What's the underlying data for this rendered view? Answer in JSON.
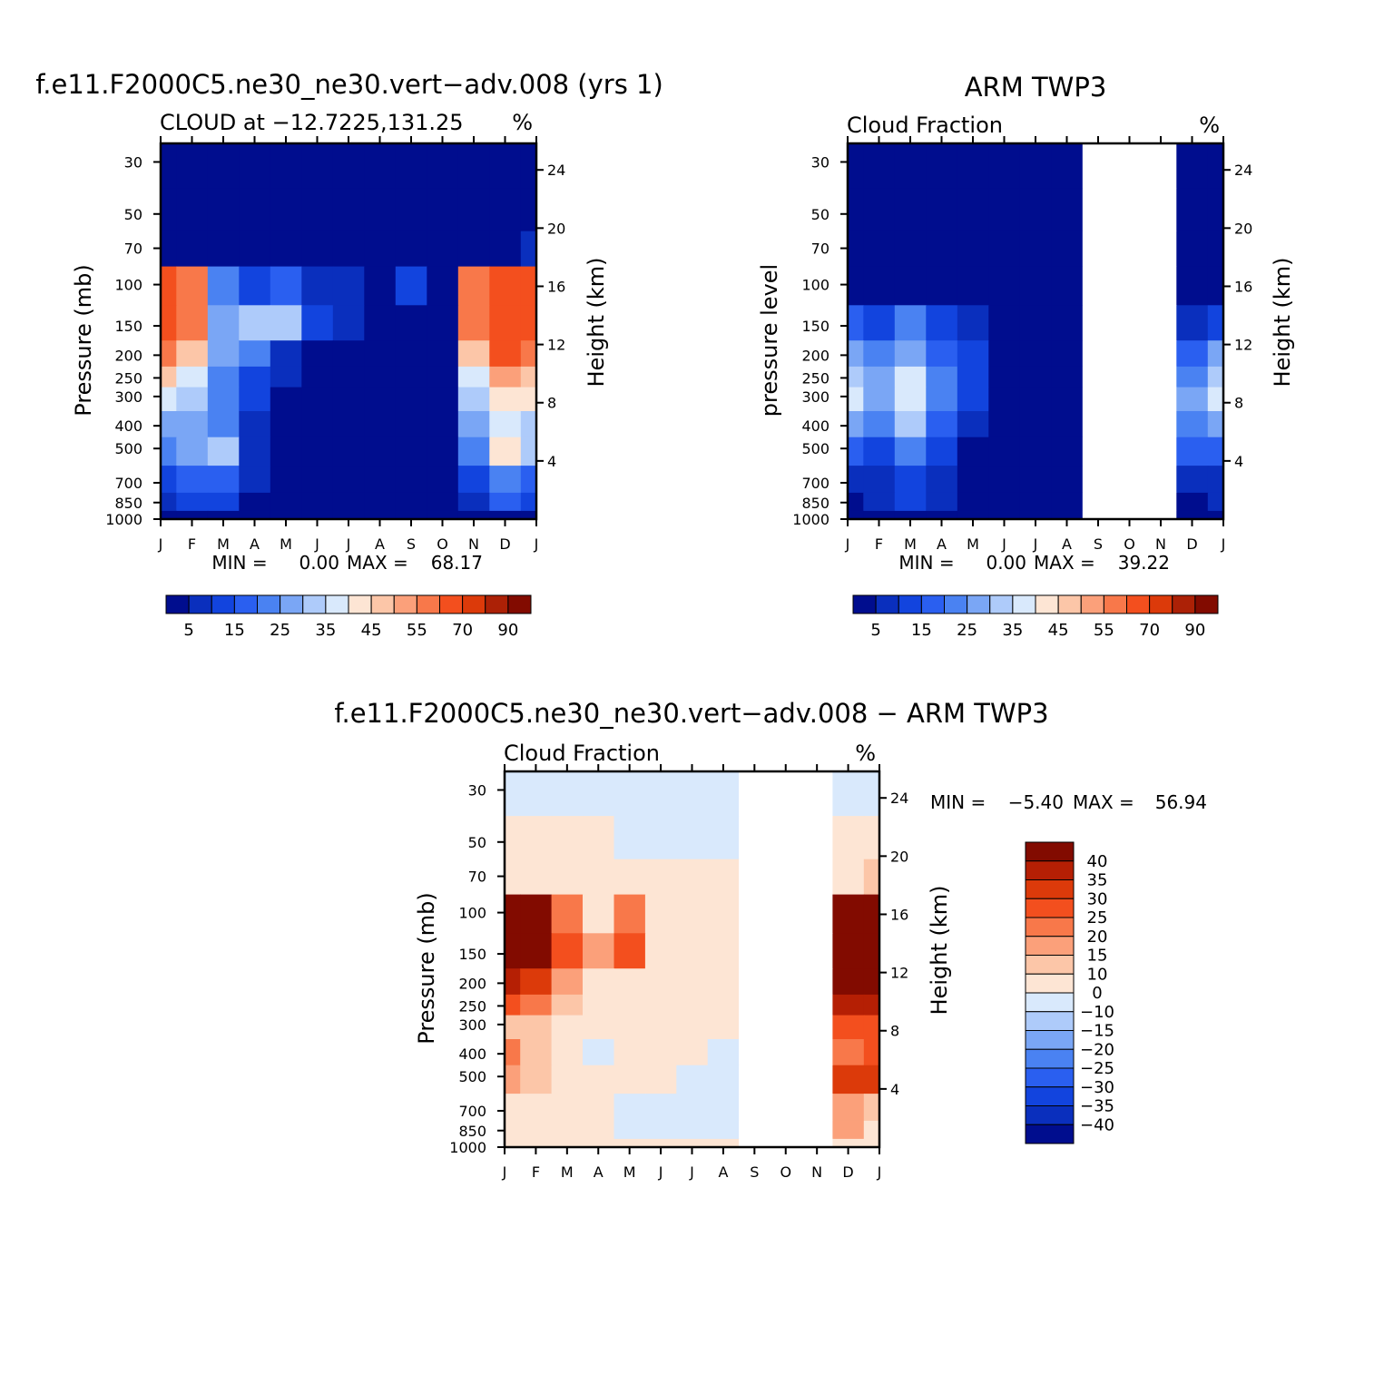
{
  "chart_data": [
    {
      "type": "heatmap",
      "title": "f.e11.F2000C5.ne30_ne30.vert−adv.008 (yrs 1)",
      "subtitle": "CLOUD at −12.7225,131.25",
      "units": "%",
      "xlabel": "",
      "ylabel": "Pressure (mb)",
      "ylabel_right": "Height (km)",
      "x_ticks": [
        "J",
        "F",
        "M",
        "A",
        "M",
        "J",
        "J",
        "A",
        "S",
        "O",
        "N",
        "D",
        "J"
      ],
      "y_ticks": [
        30,
        50,
        70,
        100,
        150,
        200,
        250,
        300,
        400,
        500,
        700,
        850,
        1000
      ],
      "y_scale": "log",
      "y_right_ticks": [
        24,
        20,
        16,
        12,
        8,
        4
      ],
      "min_text": "MIN =",
      "min_value": "0.00",
      "max_text": "MAX =",
      "max_value": "68.17",
      "missing_months": [],
      "colorbar": {
        "orientation": "horizontal",
        "labels": [
          "5",
          "15",
          "25",
          "35",
          "45",
          "55",
          "70",
          "90"
        ],
        "colors": [
          "#000d8e",
          "#0a2fbd",
          "#1244de",
          "#2a5ff0",
          "#4a82f2",
          "#7aa6f5",
          "#aecbfa",
          "#d9e9fc",
          "#fde5d4",
          "#fcc6a8",
          "#fba07a",
          "#f8784a",
          "#f34f1e",
          "#dc3a0a",
          "#ac2106",
          "#820b00"
        ]
      },
      "grid": [
        [
          0,
          0,
          0,
          0,
          0,
          0,
          0,
          0,
          0,
          0,
          0,
          0,
          0
        ],
        [
          0,
          0,
          0,
          0,
          0,
          0,
          0,
          0,
          0,
          0,
          0,
          0,
          0
        ],
        [
          4,
          3,
          1,
          0,
          0,
          0,
          0,
          0,
          0,
          0,
          2,
          4,
          5
        ],
        [
          62,
          55,
          20,
          10,
          18,
          8,
          5,
          4,
          12,
          4,
          55,
          66,
          63
        ],
        [
          66,
          58,
          25,
          30,
          30,
          12,
          6,
          4,
          3,
          3,
          58,
          68,
          64
        ],
        [
          55,
          48,
          25,
          20,
          8,
          4,
          4,
          2,
          2,
          2,
          48,
          60,
          58
        ],
        [
          45,
          38,
          22,
          14,
          6,
          2,
          2,
          2,
          2,
          2,
          38,
          50,
          48
        ],
        [
          35,
          30,
          20,
          10,
          3,
          2,
          2,
          2,
          2,
          2,
          30,
          40,
          40
        ],
        [
          25,
          25,
          22,
          8,
          2,
          2,
          2,
          2,
          2,
          2,
          25,
          35,
          33
        ],
        [
          20,
          28,
          30,
          6,
          2,
          2,
          2,
          2,
          2,
          2,
          20,
          40,
          30
        ],
        [
          12,
          16,
          18,
          5,
          2,
          2,
          2,
          2,
          4,
          2,
          12,
          20,
          16
        ],
        [
          8,
          14,
          12,
          4,
          3,
          2,
          2,
          2,
          2,
          2,
          8,
          18,
          10
        ],
        [
          2,
          2,
          2,
          2,
          2,
          2,
          2,
          2,
          2,
          2,
          2,
          2,
          2
        ]
      ]
    },
    {
      "type": "heatmap",
      "title": "ARM TWP3",
      "subtitle": "Cloud Fraction",
      "units": "%",
      "xlabel": "",
      "ylabel": "pressure level",
      "ylabel_right": "Height (km)",
      "x_ticks": [
        "J",
        "F",
        "M",
        "A",
        "M",
        "J",
        "J",
        "A",
        "S",
        "O",
        "N",
        "D",
        "J"
      ],
      "y_ticks": [
        30,
        50,
        70,
        100,
        150,
        200,
        250,
        300,
        400,
        500,
        700,
        850,
        1000
      ],
      "y_scale": "log",
      "y_right_ticks": [
        24,
        20,
        16,
        12,
        8,
        4
      ],
      "min_text": "MIN =",
      "min_value": "0.00",
      "max_text": "MAX =",
      "max_value": "39.22",
      "missing_months": [
        "S",
        "O",
        "N"
      ],
      "colorbar": {
        "orientation": "horizontal",
        "labels": [
          "5",
          "15",
          "25",
          "35",
          "45",
          "55",
          "70",
          "90"
        ],
        "colors": [
          "#000d8e",
          "#0a2fbd",
          "#1244de",
          "#2a5ff0",
          "#4a82f2",
          "#7aa6f5",
          "#aecbfa",
          "#d9e9fc",
          "#fde5d4",
          "#fcc6a8",
          "#fba07a",
          "#f8784a",
          "#f34f1e",
          "#dc3a0a",
          "#ac2106",
          "#820b00"
        ]
      },
      "grid": [
        [
          0,
          0,
          0,
          0,
          0,
          0,
          0,
          0,
          null,
          null,
          null,
          0,
          0
        ],
        [
          0,
          0,
          0,
          0,
          0,
          0,
          0,
          0,
          null,
          null,
          null,
          0,
          0
        ],
        [
          0,
          0,
          0,
          0,
          0,
          0,
          0,
          0,
          null,
          null,
          null,
          0,
          0
        ],
        [
          3,
          4,
          2,
          1,
          0,
          0,
          0,
          0,
          null,
          null,
          null,
          0,
          1
        ],
        [
          15,
          12,
          20,
          14,
          8,
          0,
          0,
          0,
          null,
          null,
          null,
          6,
          10
        ],
        [
          25,
          20,
          28,
          18,
          10,
          2,
          0,
          0,
          null,
          null,
          null,
          16,
          25
        ],
        [
          32,
          25,
          35,
          22,
          10,
          2,
          0,
          0,
          null,
          null,
          null,
          24,
          33
        ],
        [
          35,
          28,
          38,
          22,
          10,
          2,
          0,
          0,
          null,
          null,
          null,
          26,
          36
        ],
        [
          25,
          22,
          32,
          18,
          6,
          2,
          0,
          0,
          null,
          null,
          null,
          20,
          26
        ],
        [
          16,
          14,
          24,
          13,
          4,
          1,
          0,
          0,
          null,
          null,
          null,
          15,
          18
        ],
        [
          6,
          8,
          12,
          8,
          3,
          2,
          1,
          0,
          null,
          null,
          null,
          5,
          8
        ],
        [
          4,
          8,
          10,
          6,
          2,
          2,
          1,
          0,
          null,
          null,
          null,
          3,
          5
        ],
        [
          3,
          4,
          4,
          2,
          1,
          0,
          0,
          0,
          null,
          null,
          null,
          2,
          3
        ]
      ]
    },
    {
      "type": "heatmap",
      "title": "f.e11.F2000C5.ne30_ne30.vert−adv.008 − ARM TWP3",
      "subtitle": "Cloud Fraction",
      "units": "%",
      "xlabel": "",
      "ylabel": "Pressure (mb)",
      "ylabel_right": "Height (km)",
      "x_ticks": [
        "J",
        "F",
        "M",
        "A",
        "M",
        "J",
        "J",
        "A",
        "S",
        "O",
        "N",
        "D",
        "J"
      ],
      "y_ticks": [
        30,
        50,
        70,
        100,
        150,
        200,
        250,
        300,
        400,
        500,
        700,
        850,
        1000
      ],
      "y_scale": "log",
      "y_right_ticks": [
        24,
        20,
        16,
        12,
        8,
        4
      ],
      "min_text": "MIN =",
      "min_value": "−5.40",
      "max_text": "MAX =",
      "max_value": "56.94",
      "missing_months": [
        "S",
        "O",
        "N"
      ],
      "colorbar": {
        "orientation": "vertical",
        "labels": [
          "40",
          "35",
          "30",
          "25",
          "20",
          "15",
          "10",
          "0",
          "−10",
          "−15",
          "−20",
          "−25",
          "−30",
          "−35",
          "−40"
        ],
        "colors": [
          "#820b00",
          "#b51f04",
          "#dc3a0a",
          "#f34f1e",
          "#f8784a",
          "#fba07a",
          "#fcc6a8",
          "#fde5d4",
          "#d9e9fc",
          "#aecbfa",
          "#7aa6f5",
          "#4a82f2",
          "#2a5ff0",
          "#1244de",
          "#0a2fbd",
          "#000d8e"
        ]
      },
      "grid": [
        [
          -2,
          -2,
          -2,
          -2,
          -2,
          -2,
          -2,
          -2,
          null,
          null,
          null,
          -2,
          -2
        ],
        [
          2,
          2,
          2,
          1,
          -1,
          -2,
          -2,
          -2,
          null,
          null,
          null,
          2,
          2
        ],
        [
          8,
          6,
          4,
          3,
          3,
          2,
          2,
          2,
          null,
          null,
          null,
          8,
          10
        ],
        [
          52,
          45,
          20,
          8,
          20,
          5,
          3,
          2,
          null,
          null,
          null,
          45,
          55
        ],
        [
          55,
          45,
          28,
          18,
          25,
          6,
          3,
          2,
          null,
          null,
          null,
          50,
          58
        ],
        [
          35,
          30,
          15,
          8,
          5,
          3,
          3,
          2,
          null,
          null,
          null,
          42,
          40
        ],
        [
          25,
          22,
          12,
          5,
          3,
          3,
          2,
          2,
          null,
          null,
          null,
          35,
          35
        ],
        [
          14,
          13,
          6,
          3,
          2,
          2,
          2,
          2,
          null,
          null,
          null,
          25,
          28
        ],
        [
          20,
          12,
          3,
          -1,
          2,
          2,
          2,
          -1,
          null,
          null,
          null,
          22,
          28
        ],
        [
          16,
          10,
          4,
          2,
          2,
          2,
          -1,
          -1,
          null,
          null,
          null,
          30,
          30
        ],
        [
          6,
          5,
          3,
          2,
          -1,
          -1,
          -1,
          -1,
          null,
          null,
          null,
          15,
          12
        ],
        [
          3,
          6,
          3,
          2,
          -1,
          -1,
          -1,
          -1,
          null,
          null,
          null,
          16,
          8
        ],
        [
          2,
          2,
          2,
          2,
          2,
          2,
          2,
          2,
          null,
          null,
          null,
          3,
          3
        ]
      ]
    }
  ]
}
